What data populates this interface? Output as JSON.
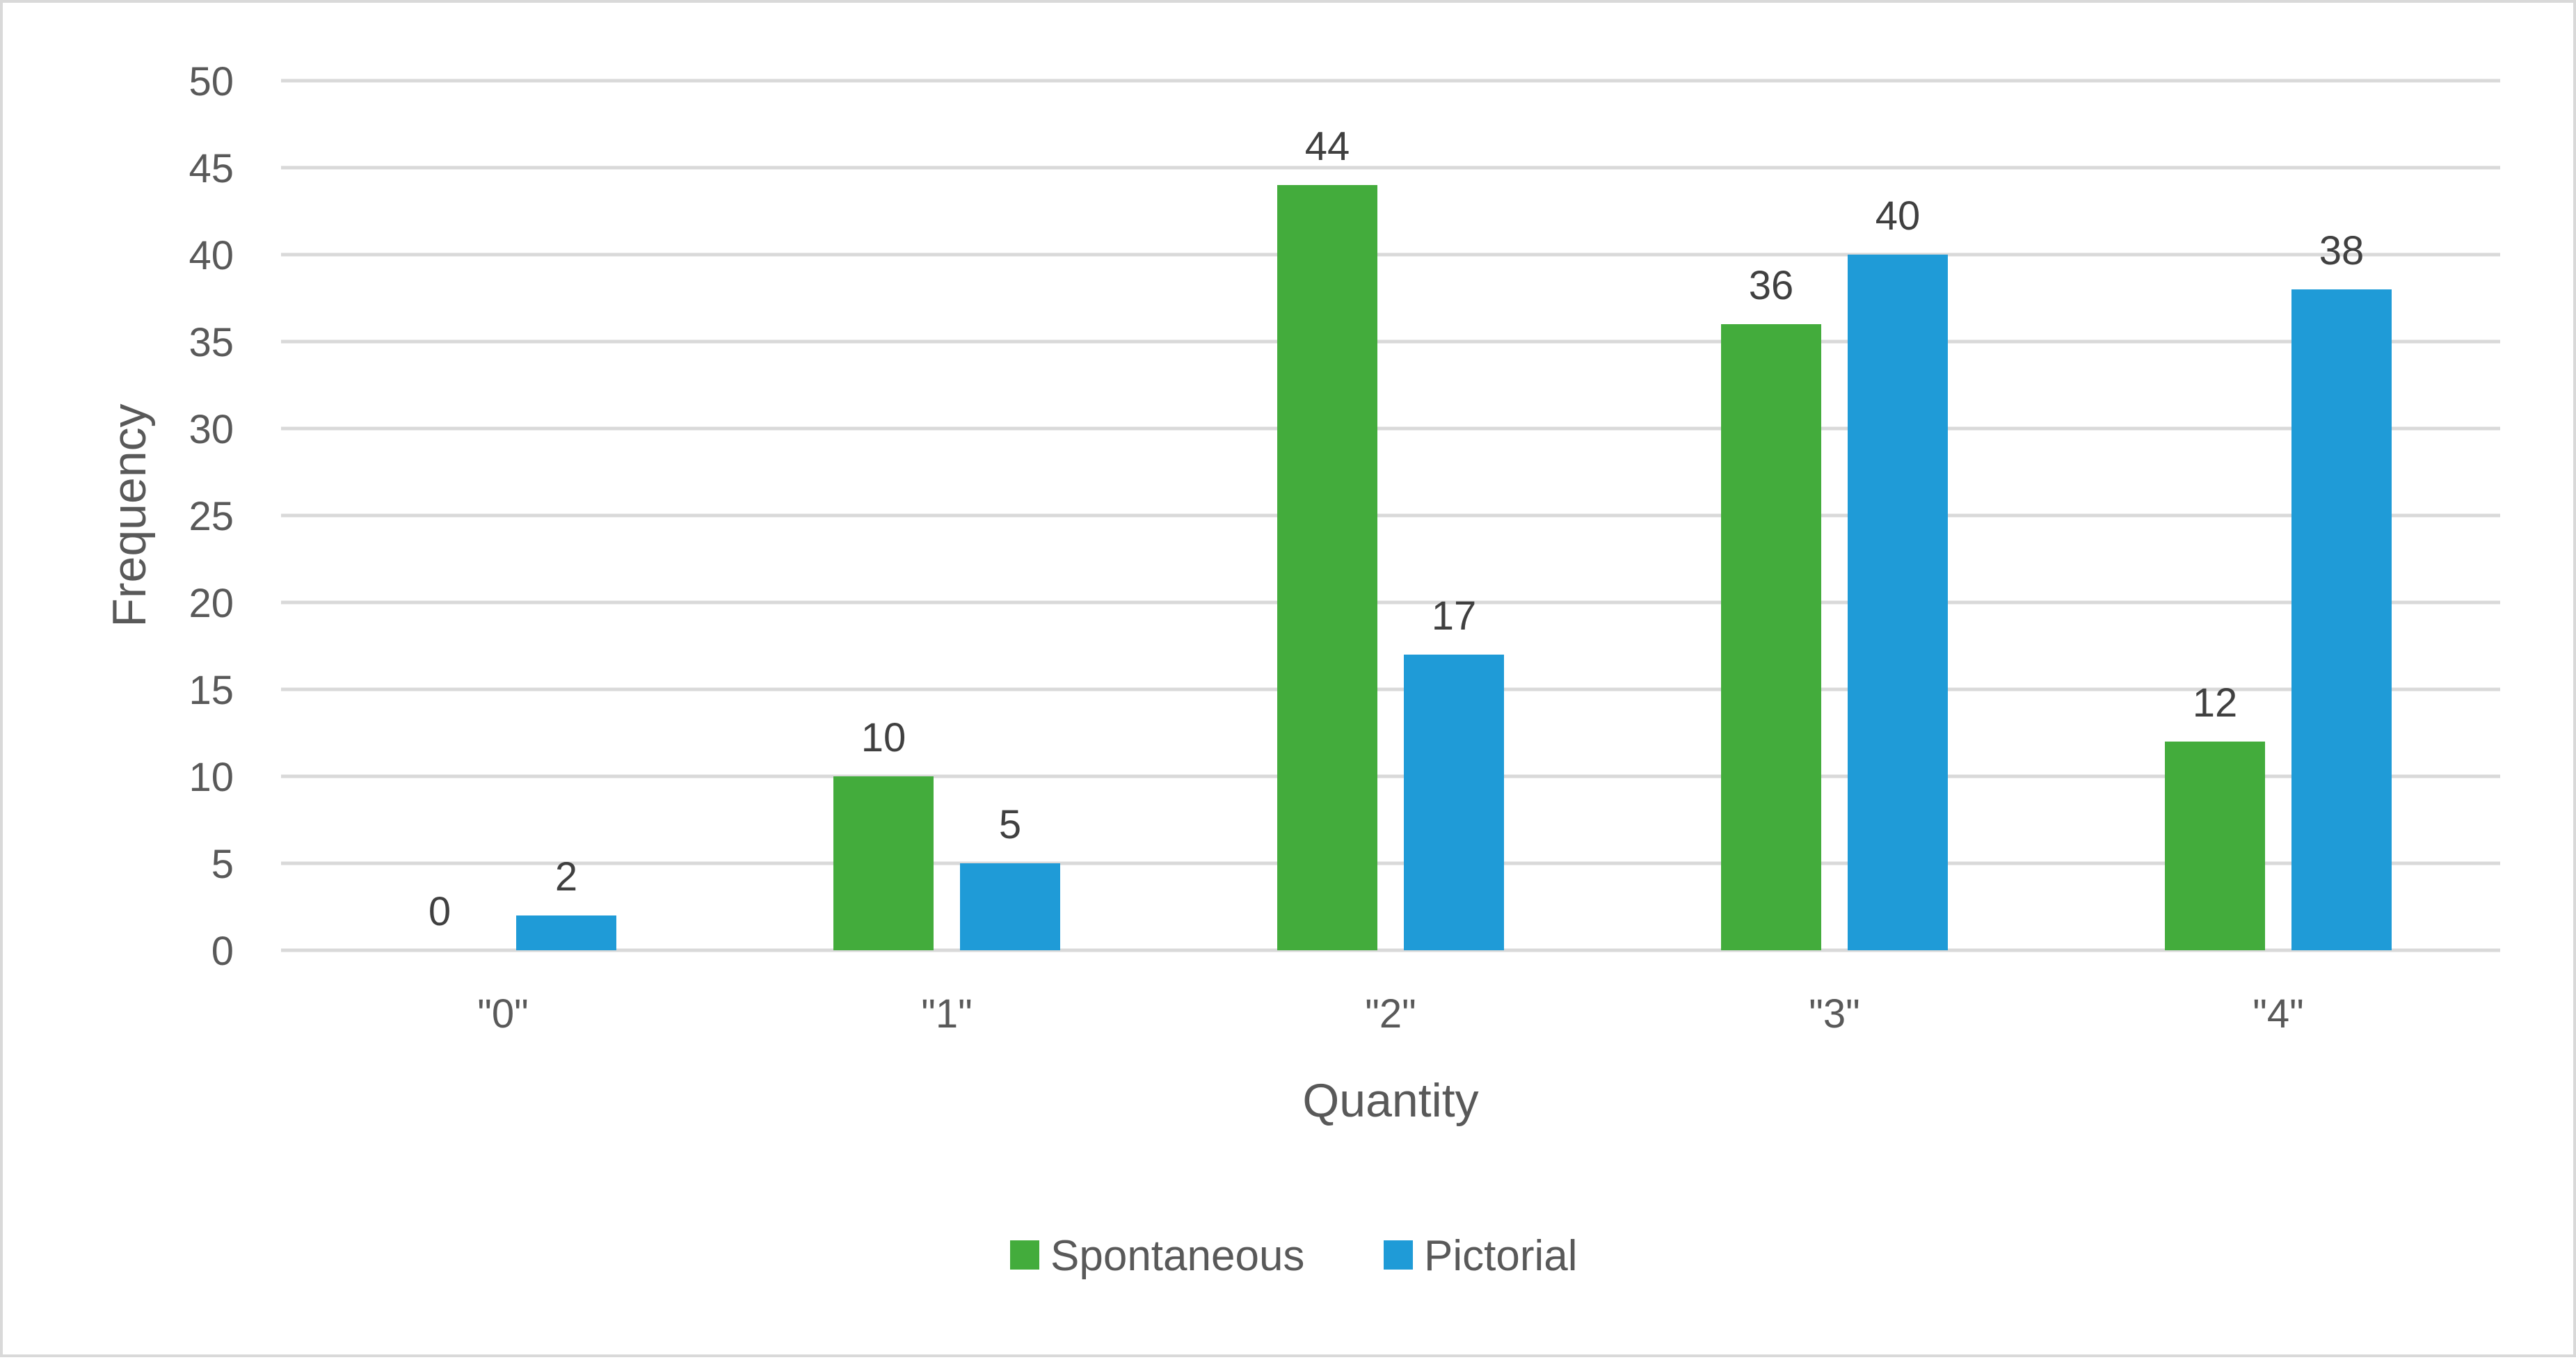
{
  "chart_data": {
    "type": "bar",
    "categories": [
      "\"0\"",
      "\"1\"",
      "\"2\"",
      "\"3\"",
      "\"4\""
    ],
    "series": [
      {
        "name": "Spontaneous",
        "values": [
          0,
          10,
          44,
          36,
          12
        ],
        "color": "#43ac3c"
      },
      {
        "name": "Pictorial",
        "values": [
          2,
          5,
          17,
          40,
          38
        ],
        "color": "#1f9bd7"
      }
    ],
    "xlabel": "Quantity",
    "ylabel": "Frequency",
    "ylim": [
      0,
      50
    ],
    "yticks": [
      0,
      5,
      10,
      15,
      20,
      25,
      30,
      35,
      40,
      45,
      50
    ],
    "grid": true,
    "legend": "bottom",
    "data_labels": true
  },
  "colors": {
    "gridline": "#d9d9d9",
    "axis_text": "#595959",
    "label_text": "#404040"
  }
}
